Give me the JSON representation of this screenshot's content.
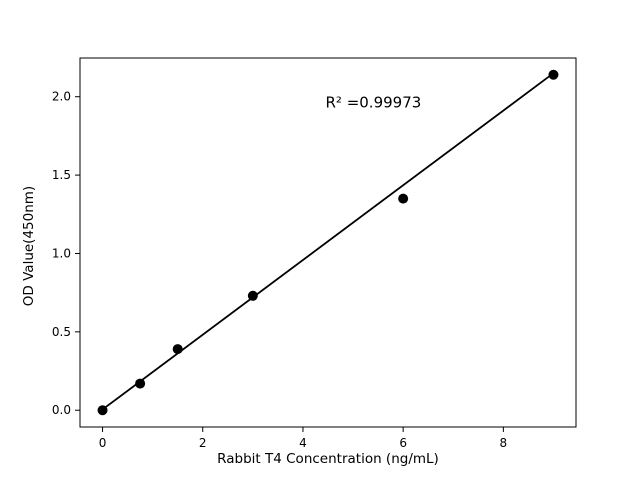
{
  "chart_data": {
    "type": "scatter",
    "title": "",
    "xlabel": "Rabbit T4 Concentration (ng/mL)",
    "ylabel": "OD Value(450nm)",
    "annotation": "R² =0.99973",
    "annotation_pos": {
      "x": 4.45,
      "y": 1.93
    },
    "x": [
      0,
      0.75,
      1.5,
      3,
      6,
      9
    ],
    "y": [
      0.0,
      0.17,
      0.39,
      0.73,
      1.35,
      2.14
    ],
    "fit_line": {
      "x": [
        0,
        9
      ],
      "y": [
        0.005,
        2.15
      ]
    },
    "xlim": [
      -0.45,
      9.45
    ],
    "ylim": [
      -0.107,
      2.247
    ],
    "xticks": [
      0,
      2,
      4,
      6,
      8
    ],
    "xtick_labels": [
      "0",
      "2",
      "4",
      "6",
      "8"
    ],
    "yticks": [
      0,
      0.5,
      1,
      1.5,
      2
    ],
    "ytick_labels": [
      "0.0",
      "0.5",
      "1.0",
      "1.5",
      "2.0"
    ],
    "marker_color": "#000000",
    "line_color": "#000000",
    "axis_color": "#000000",
    "background": "#ffffff",
    "grid": false,
    "legend": "none"
  }
}
